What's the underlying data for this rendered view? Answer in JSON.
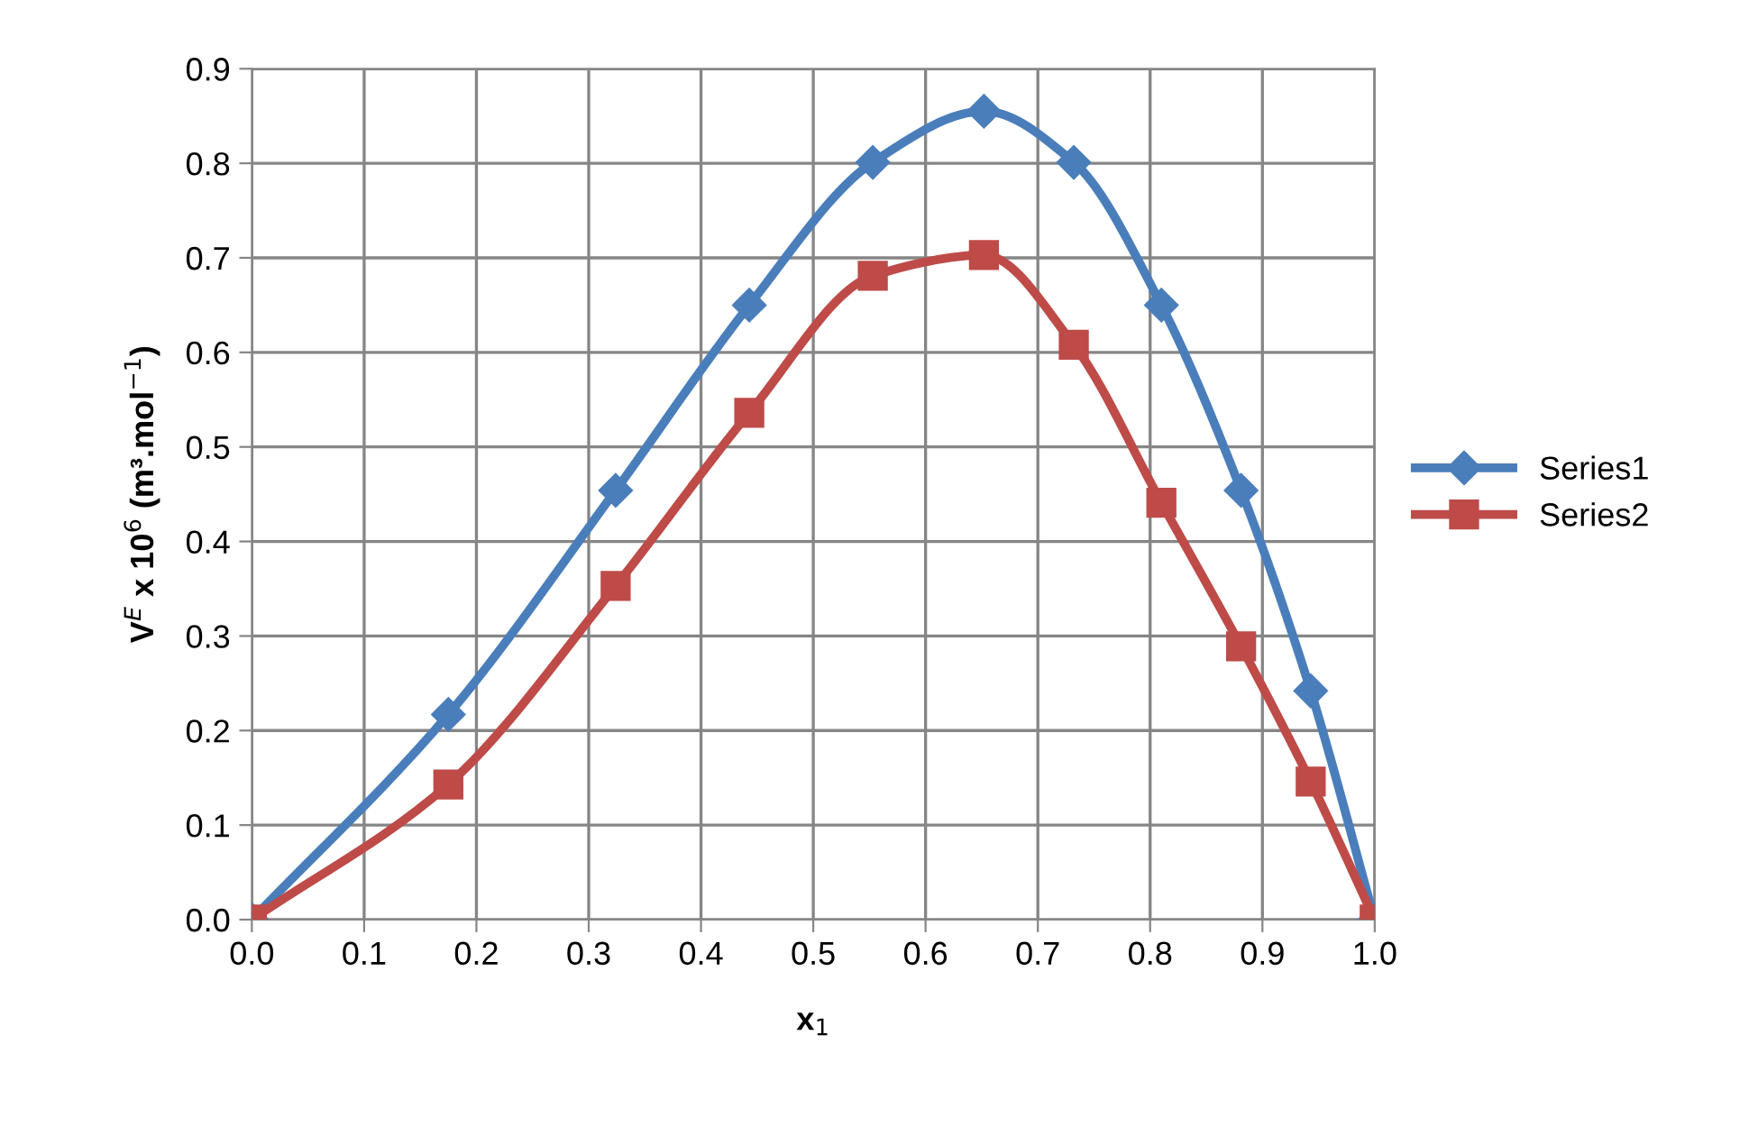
{
  "chart_data": {
    "type": "line",
    "xlabel": "x$_{1}$",
    "ylabel": "V$^{E}$ x 10$^{6}$ (m³.mol$^{−1}$)",
    "x": [
      0.0,
      0.175,
      0.324,
      0.443,
      0.553,
      0.652,
      0.732,
      0.81,
      0.881,
      0.943,
      1.0
    ],
    "series": [
      {
        "name": "Series1",
        "color": "#4a7ebb",
        "marker": "diamond",
        "values": [
          0.0,
          0.217,
          0.454,
          0.65,
          0.801,
          0.855,
          0.801,
          0.65,
          0.454,
          0.242,
          0.0
        ]
      },
      {
        "name": "Series2",
        "color": "#be4b48",
        "marker": "square",
        "values": [
          0.0,
          0.143,
          0.353,
          0.536,
          0.681,
          0.703,
          0.608,
          0.441,
          0.289,
          0.146,
          0.0
        ]
      }
    ],
    "xlim": [
      0.0,
      1.0
    ],
    "xticks": [
      {
        "value": 0.0,
        "label": "0.0"
      },
      0.1,
      0.2,
      0.3,
      0.4,
      0.5,
      0.6,
      0.7,
      0.8,
      0.9,
      {
        "value": 1.0,
        "label": "1.0"
      }
    ],
    "ylim": [
      0.0,
      0.9
    ],
    "yticks": [
      {
        "value": 0.0,
        "label": "0.0"
      },
      0.1,
      0.2,
      0.3,
      0.4,
      0.5,
      0.6,
      0.7,
      0.8,
      0.9
    ],
    "grid": true,
    "legend": "right",
    "line_style": "solid"
  }
}
